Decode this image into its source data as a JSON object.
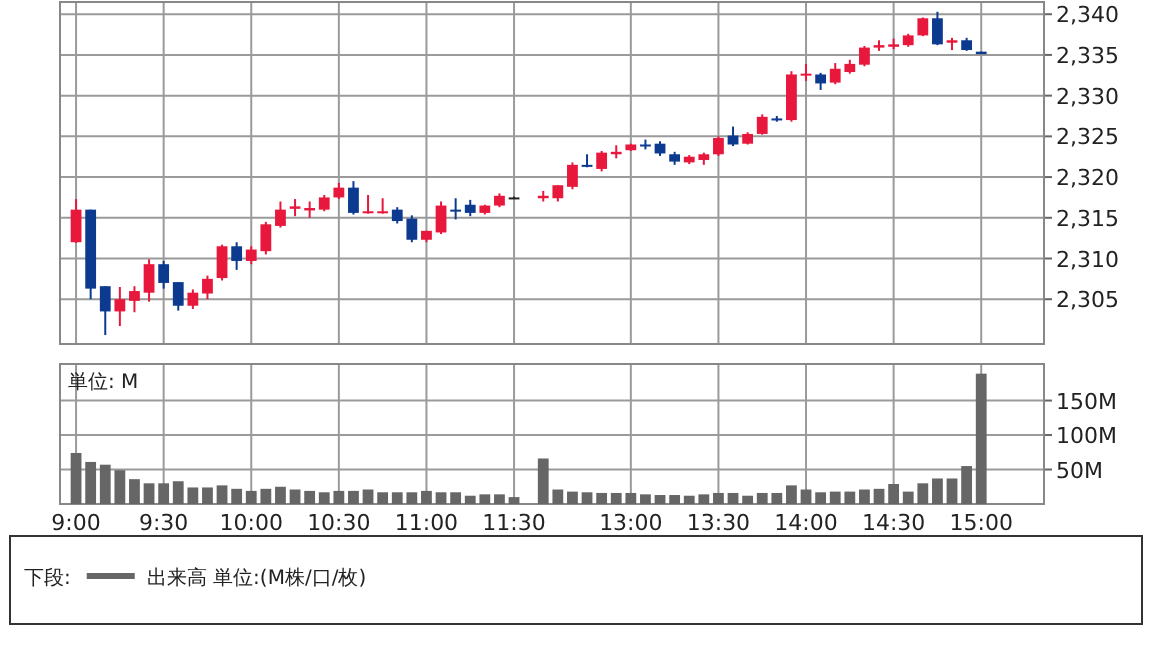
{
  "chart_data": [
    {
      "type": "candlestick",
      "categories": [
        null,
        null,
        null,
        null,
        null,
        null,
        null,
        null,
        null,
        null,
        null,
        null,
        null,
        null,
        null,
        null,
        null,
        null,
        null,
        null,
        null,
        null,
        null,
        null,
        null,
        null,
        null,
        null,
        null,
        null,
        null,
        null,
        null,
        null,
        null,
        null,
        null,
        null,
        null,
        null,
        null,
        null,
        null,
        null,
        null,
        null,
        null,
        null,
        null,
        null,
        null,
        null,
        null,
        null,
        null,
        null,
        null,
        null,
        null,
        null,
        null,
        null,
        null
      ],
      "ohlc": [
        [
          2312,
          2317.3,
          2311.9,
          2316
        ],
        [
          2316,
          2316,
          2305,
          2306.3
        ],
        [
          2306.6,
          2306.6,
          2300.6,
          2303.5
        ],
        [
          2303.5,
          2306.5,
          2301.7,
          2305
        ],
        [
          2304.8,
          2306.6,
          2303.4,
          2306
        ],
        [
          2305.8,
          2309.9,
          2304.7,
          2309.3
        ],
        [
          2309.3,
          2309.7,
          2306.3,
          2307
        ],
        [
          2307.1,
          2307.1,
          2303.6,
          2304.2
        ],
        [
          2304.2,
          2306.2,
          2303.8,
          2305.8
        ],
        [
          2305.7,
          2307.9,
          2305,
          2307.5
        ],
        [
          2307.6,
          2311.7,
          2307.3,
          2311.5
        ],
        [
          2311.5,
          2312,
          2308.6,
          2309.7
        ],
        [
          2309.7,
          2311.5,
          2309.3,
          2311.1
        ],
        [
          2310.9,
          2314.5,
          2310.5,
          2314.2
        ],
        [
          2314,
          2317,
          2313.8,
          2316
        ],
        [
          2316.1,
          2317.3,
          2315.2,
          2316.4
        ],
        [
          2315.9,
          2317,
          2315,
          2316.2
        ],
        [
          2316,
          2317.8,
          2315.8,
          2317.5
        ],
        [
          2317.5,
          2319.3,
          2317.3,
          2318.7
        ],
        [
          2318.7,
          2319.5,
          2315.4,
          2315.6
        ],
        [
          2315.6,
          2317.8,
          2315.5,
          2315.8
        ],
        [
          2315.6,
          2317.4,
          2315.5,
          2315.8
        ],
        [
          2316,
          2316.3,
          2314.3,
          2314.6
        ],
        [
          2314.9,
          2315.3,
          2312,
          2312.3
        ],
        [
          2312.3,
          2313.4,
          2312,
          2313.4
        ],
        [
          2313.2,
          2317,
          2313,
          2316.5
        ],
        [
          2316,
          2317.4,
          2314.8,
          2315.8
        ],
        [
          2316.6,
          2317.2,
          2315.2,
          2315.6
        ],
        [
          2315.6,
          2316.6,
          2315.4,
          2316.5
        ],
        [
          2316.5,
          2318,
          2316.3,
          2317.7
        ],
        [
          2317.5,
          2317.6,
          2317.4,
          2317.5
        ],
        null,
        [
          2317.4,
          2318.3,
          2317,
          2317.7
        ],
        [
          2317.4,
          2319,
          2317,
          2319
        ],
        [
          2318.8,
          2321.8,
          2318.5,
          2321.5
        ],
        [
          2321.5,
          2322.8,
          2321.2,
          2321.4
        ],
        [
          2321,
          2323.2,
          2320.7,
          2323
        ],
        [
          2322.8,
          2323.9,
          2322.3,
          2323.1
        ],
        [
          2323.3,
          2324.1,
          2323.2,
          2324
        ],
        [
          2324,
          2324.6,
          2323.4,
          2323.8
        ],
        [
          2324.1,
          2324.4,
          2322.6,
          2322.9
        ],
        [
          2322.8,
          2323.1,
          2321.5,
          2321.9
        ],
        [
          2321.8,
          2322.7,
          2321.6,
          2322.5
        ],
        [
          2322.1,
          2323,
          2321.5,
          2322.8
        ],
        [
          2322.8,
          2325,
          2322.6,
          2324.8
        ],
        [
          2325.1,
          2326.2,
          2323.8,
          2324
        ],
        [
          2324.1,
          2325.5,
          2324,
          2325.3
        ],
        [
          2325.3,
          2327.7,
          2325.2,
          2327.4
        ],
        [
          2327.2,
          2327.5,
          2326.8,
          2327
        ],
        [
          2327,
          2333,
          2326.8,
          2332.6
        ],
        [
          2332.5,
          2333.9,
          2331.8,
          2332.7
        ],
        [
          2332.6,
          2332.8,
          2330.7,
          2331.5
        ],
        [
          2331.6,
          2334,
          2331.4,
          2333.3
        ],
        [
          2332.9,
          2334.4,
          2332.7,
          2333.9
        ],
        [
          2333.8,
          2336.1,
          2333.6,
          2335.9
        ],
        [
          2335.9,
          2336.8,
          2335.5,
          2336.2
        ],
        [
          2336,
          2337,
          2335.7,
          2336.3
        ],
        [
          2336.2,
          2337.6,
          2336,
          2337.4
        ],
        [
          2337.4,
          2339.6,
          2337.3,
          2339.5
        ],
        [
          2339.5,
          2340.3,
          2336.2,
          2336.3
        ],
        [
          2336.5,
          2337.1,
          2335.6,
          2336.8
        ],
        [
          2336.8,
          2337.1,
          2335.5,
          2335.6
        ],
        [
          2335.4,
          2335.4,
          2335.1,
          2335.1
        ]
      ],
      "ylim": [
        2299.5,
        2341.5
      ],
      "yticks": [
        {
          "value": 2305,
          "label": "2,305"
        },
        {
          "value": 2310,
          "label": "2,310"
        },
        {
          "value": 2315,
          "label": "2,315"
        },
        {
          "value": 2320,
          "label": "2,320"
        },
        {
          "value": 2325,
          "label": "2,325"
        },
        {
          "value": 2330,
          "label": "2,330"
        },
        {
          "value": 2335,
          "label": "2,335"
        },
        {
          "value": 2340,
          "label": "2,340"
        }
      ],
      "grid": true,
      "tick_labels": "y"
    },
    {
      "type": "bar",
      "categories": [
        "9:00",
        null,
        null,
        null,
        null,
        null,
        "9:30",
        null,
        null,
        null,
        null,
        null,
        "10:00",
        null,
        null,
        null,
        null,
        null,
        "10:30",
        null,
        null,
        null,
        null,
        null,
        "11:00",
        null,
        null,
        null,
        null,
        null,
        "11:30",
        null,
        null,
        null,
        null,
        null,
        null,
        null,
        "13:00",
        null,
        null,
        null,
        null,
        null,
        "13:30",
        null,
        null,
        null,
        null,
        null,
        "14:00",
        null,
        null,
        null,
        null,
        null,
        "14:30",
        null,
        null,
        null,
        null,
        null,
        "15:00"
      ],
      "series": [
        {
          "name": "出来高 単位:(M株/口/枚)",
          "color": "#666666",
          "values": [
            74,
            61,
            57,
            49,
            36,
            30,
            30,
            33,
            24,
            24,
            27,
            22,
            19,
            22,
            25,
            21,
            19,
            17,
            19,
            19,
            21,
            17,
            17,
            17,
            19,
            17,
            17,
            12,
            14,
            14,
            10,
            null,
            66,
            21,
            18,
            17,
            16,
            16,
            16,
            14,
            13,
            13,
            12,
            14,
            16,
            16,
            12,
            16,
            16,
            27,
            21,
            17,
            18,
            18,
            21,
            22,
            29,
            18,
            30,
            37,
            37,
            55,
            189
          ]
        }
      ],
      "ylim": [
        0,
        203
      ],
      "yticks": [
        {
          "value": 50,
          "label": "50M"
        },
        {
          "value": 100,
          "label": "100M"
        },
        {
          "value": 150,
          "label": "150M"
        }
      ],
      "ylabel": "単位: M",
      "grid": true,
      "legend": "bottom",
      "legend_title": "下段:"
    }
  ]
}
